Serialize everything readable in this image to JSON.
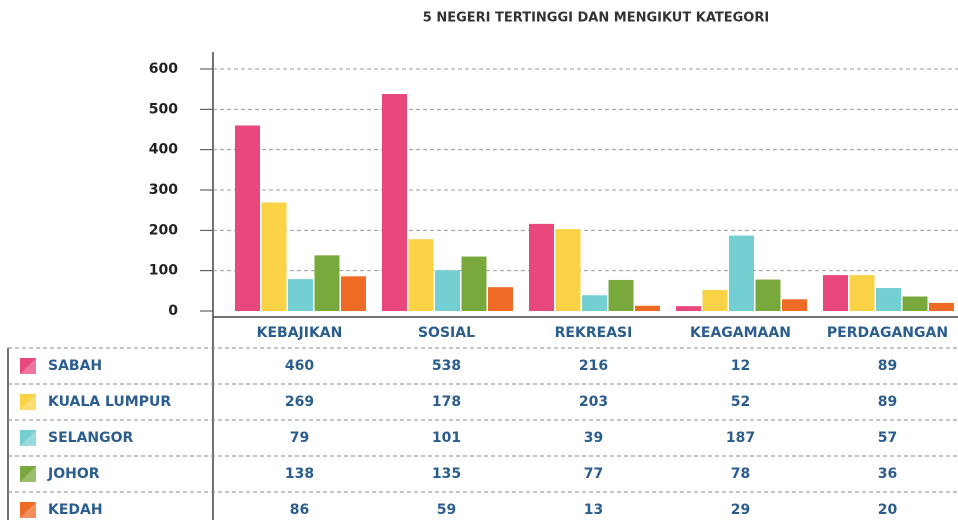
{
  "chart_data": {
    "type": "bar",
    "title": "5 NEGERI TERTINGGI DAN MENGIKUT KATEGORI",
    "categories": [
      "KEBAJIKAN",
      "SOSIAL",
      "REKREASI",
      "KEAGAMAAN",
      "PERDAGANGAN"
    ],
    "series": [
      {
        "name": "SABAH",
        "color": "#e9487d",
        "values": [
          460,
          538,
          216,
          12,
          89
        ]
      },
      {
        "name": "KUALA LUMPUR",
        "color": "#fad246",
        "values": [
          269,
          178,
          203,
          52,
          89
        ]
      },
      {
        "name": "SELANGOR",
        "color": "#74cfd3",
        "values": [
          79,
          101,
          39,
          187,
          57
        ]
      },
      {
        "name": "JOHOR",
        "color": "#79a83c",
        "values": [
          138,
          135,
          77,
          78,
          36
        ]
      },
      {
        "name": "KEDAH",
        "color": "#ee6b26",
        "values": [
          86,
          59,
          13,
          29,
          20
        ]
      }
    ],
    "ylim": [
      0,
      600
    ],
    "yticks": [
      0,
      100,
      200,
      300,
      400,
      500,
      600
    ],
    "grid": true
  }
}
